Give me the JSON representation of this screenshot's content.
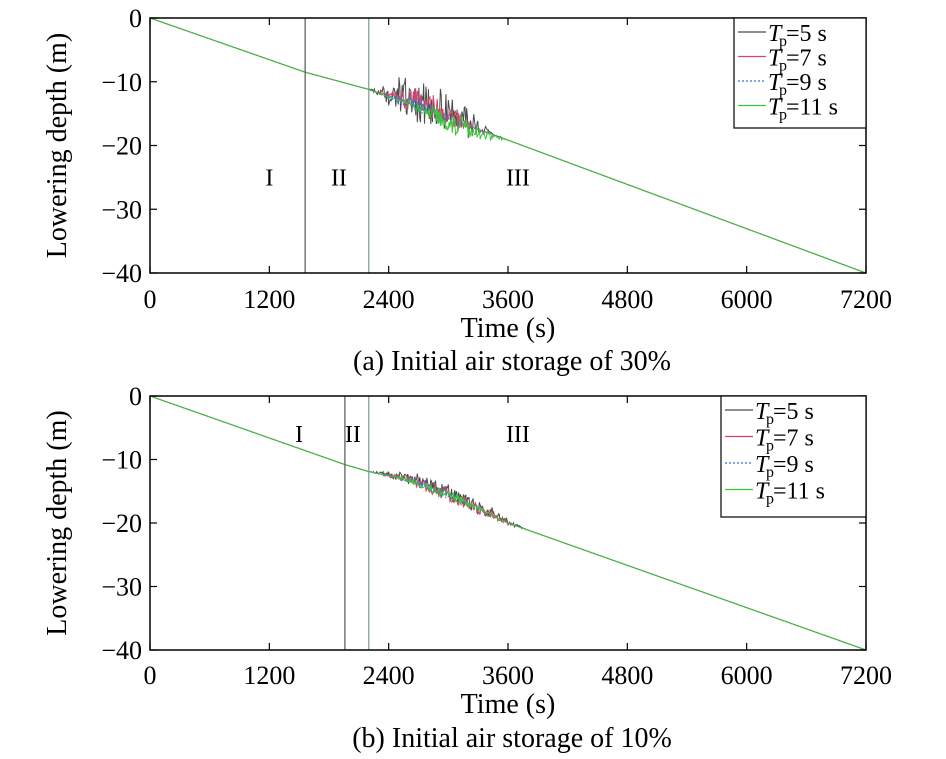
{
  "chart_data": [
    {
      "type": "line",
      "caption": "(a) Initial air storage of 30%",
      "xlabel": "Time (s)",
      "ylabel": "Lowering depth (m)",
      "xlim": [
        0,
        7200
      ],
      "ylim": [
        -40,
        0
      ],
      "xticks": [
        0,
        1200,
        2400,
        3600,
        4800,
        6000,
        7200
      ],
      "yticks": [
        0,
        -10,
        -20,
        -30,
        -40
      ],
      "xtick_labels": [
        "0",
        "1200",
        "2400",
        "3600",
        "4800",
        "6000",
        "7200"
      ],
      "ytick_labels": [
        "0",
        "−10",
        "−20",
        "−30",
        "−40"
      ],
      "grid": false,
      "legend_position": "top-right",
      "regions": [
        {
          "label": "I",
          "x": 1200,
          "y": -25
        },
        {
          "label": "II",
          "x": 1900,
          "y": -25
        },
        {
          "label": "III",
          "x": 3700,
          "y": -25
        }
      ],
      "phase_boundaries": [
        1560,
        2200
      ],
      "series": [
        {
          "name": "T=5 s",
          "legend": {
            "italic": "T",
            "sub": "p",
            "rest": "=5 s"
          },
          "color": "#4a4a4a",
          "dash": "",
          "x": [
            0,
            1560,
            2200,
            2400,
            2600,
            2800,
            3000,
            3200,
            3400,
            7200
          ],
          "y": [
            0,
            -8.5,
            -11.2,
            -12.4,
            -13.2,
            -14.4,
            -16.0,
            -17.0,
            -18.0,
            -40
          ],
          "noise": {
            "from": 2200,
            "to": 3450,
            "amp": 3.2,
            "bias": 1
          }
        },
        {
          "name": "T=7 s",
          "legend": {
            "italic": "T",
            "sub": "p",
            "rest": "=7 s"
          },
          "color": "#d9426a",
          "dash": "",
          "x": [
            0,
            1560,
            2200,
            2400,
            2600,
            2800,
            3000,
            3200,
            3400,
            7200
          ],
          "y": [
            0,
            -8.5,
            -11.2,
            -12.4,
            -13.2,
            -14.4,
            -16.0,
            -17.0,
            -18.0,
            -40
          ],
          "noise": {
            "from": 2300,
            "to": 3300,
            "amp": 1.8,
            "bias": 1
          }
        },
        {
          "name": "T=9 s",
          "legend": {
            "italic": "T",
            "sub": "p",
            "rest": "=9 s"
          },
          "color": "#3a6fd8",
          "dash": "2,2",
          "x": [
            0,
            1560,
            2200,
            2400,
            2600,
            2800,
            3000,
            3200,
            3400,
            7200
          ],
          "y": [
            0,
            -8.5,
            -11.2,
            -12.4,
            -13.2,
            -14.4,
            -16.0,
            -17.0,
            -18.0,
            -40
          ],
          "noise": {
            "from": 2300,
            "to": 3200,
            "amp": 1.2,
            "bias": 0
          }
        },
        {
          "name": "T=11 s",
          "legend": {
            "italic": "T",
            "sub": "p",
            "rest": "=11 s"
          },
          "color": "#37c837",
          "dash": "",
          "x": [
            0,
            1560,
            2200,
            2400,
            2600,
            2800,
            3000,
            3200,
            3400,
            7200
          ],
          "y": [
            0,
            -8.5,
            -11.2,
            -12.4,
            -13.2,
            -14.4,
            -16.0,
            -17.0,
            -18.0,
            -40
          ],
          "noise": {
            "from": 2500,
            "to": 3600,
            "amp": 1.4,
            "bias": -1
          }
        }
      ]
    },
    {
      "type": "line",
      "caption": "(b) Initial air storage of 10%",
      "xlabel": "Time (s)",
      "ylabel": "Lowering depth (m)",
      "xlim": [
        0,
        7200
      ],
      "ylim": [
        -40,
        0
      ],
      "xticks": [
        0,
        1200,
        2400,
        3600,
        4800,
        6000,
        7200
      ],
      "yticks": [
        0,
        -10,
        -20,
        -30,
        -40
      ],
      "xtick_labels": [
        "0",
        "1200",
        "2400",
        "3600",
        "4800",
        "6000",
        "7200"
      ],
      "ytick_labels": [
        "0",
        "−10",
        "−20",
        "−30",
        "−40"
      ],
      "grid": false,
      "legend_position": "top-right",
      "regions": [
        {
          "label": "I",
          "x": 1500,
          "y": -6
        },
        {
          "label": "II",
          "x": 2040,
          "y": -6
        },
        {
          "label": "III",
          "x": 3700,
          "y": -6
        }
      ],
      "phase_boundaries": [
        1960,
        2200
      ],
      "series": [
        {
          "name": "T=5 s",
          "legend": {
            "italic": "T",
            "sub": "p",
            "rest": "=5 s"
          },
          "color": "#4a4a4a",
          "dash": "",
          "x": [
            0,
            1960,
            2200,
            2600,
            3000,
            3600,
            7200
          ],
          "y": [
            0,
            -10.8,
            -11.9,
            -13.2,
            -15.6,
            -20.0,
            -40
          ],
          "noise": {
            "from": 2200,
            "to": 3800,
            "amp": 1.2,
            "bias": 1
          }
        },
        {
          "name": "T=7 s",
          "legend": {
            "italic": "T",
            "sub": "p",
            "rest": "=7 s"
          },
          "color": "#d9426a",
          "dash": "",
          "x": [
            0,
            1960,
            2200,
            2600,
            3000,
            3600,
            7200
          ],
          "y": [
            0,
            -10.8,
            -11.9,
            -13.2,
            -15.6,
            -20.0,
            -40
          ],
          "noise": {
            "from": 2300,
            "to": 3700,
            "amp": 1.0,
            "bias": 0
          }
        },
        {
          "name": "T=9 s",
          "legend": {
            "italic": "T",
            "sub": "p",
            "rest": "=9 s"
          },
          "color": "#3a6fd8",
          "dash": "2,2",
          "x": [
            0,
            1960,
            2200,
            2600,
            3000,
            3600,
            7200
          ],
          "y": [
            0,
            -10.8,
            -11.9,
            -13.2,
            -15.6,
            -20.0,
            -40
          ],
          "noise": {
            "from": 2300,
            "to": 3500,
            "amp": 0.7,
            "bias": 0
          }
        },
        {
          "name": "T=11 s",
          "legend": {
            "italic": "T",
            "sub": "p",
            "rest": "=11 s"
          },
          "color": "#37c837",
          "dash": "",
          "x": [
            0,
            1960,
            2200,
            2600,
            3000,
            3600,
            7200
          ],
          "y": [
            0,
            -10.8,
            -11.9,
            -13.2,
            -15.6,
            -20.0,
            -40
          ],
          "noise": {
            "from": 2400,
            "to": 3600,
            "amp": 0.7,
            "bias": 0
          }
        }
      ]
    }
  ]
}
